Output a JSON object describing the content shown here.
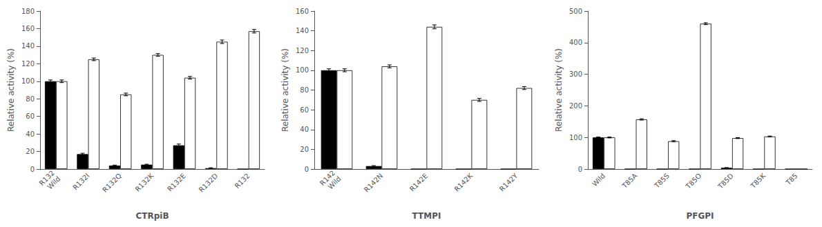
{
  "chart_data": [
    {
      "type": "bar",
      "xlabel": "CTRpiB",
      "ylabel": "Relative activity (%)",
      "categories": [
        "R132\nWild",
        "R132I",
        "R132Q",
        "R132K",
        "R132E",
        "R132D",
        "R132"
      ],
      "series": [
        {
          "color": "#000000",
          "values": [
            100,
            17,
            4,
            5,
            27,
            1,
            0
          ],
          "errors": [
            1.5,
            1.0,
            0.5,
            0.5,
            1.5,
            0.5,
            0.0
          ]
        },
        {
          "color": "#ffffff",
          "values": [
            100,
            125,
            85,
            130,
            104,
            145,
            157
          ],
          "errors": [
            1.5,
            1.5,
            1.5,
            1.5,
            1.5,
            2.0,
            2.0
          ]
        }
      ],
      "ylim": [
        0,
        180
      ],
      "yticks": [
        0,
        20,
        40,
        60,
        80,
        100,
        120,
        140,
        160,
        180
      ],
      "grid": false
    },
    {
      "type": "bar",
      "xlabel": "TTMPI",
      "ylabel": "Relative activity (%)",
      "categories": [
        "R142\nWild",
        "R142N",
        "R142E",
        "R142K",
        "R142Y"
      ],
      "series": [
        {
          "color": "#000000",
          "values": [
            100,
            3,
            0,
            0,
            0
          ],
          "errors": [
            1.5,
            0.5,
            0.0,
            0.0,
            0.0
          ]
        },
        {
          "color": "#ffffff",
          "values": [
            100,
            104,
            144,
            70,
            82
          ],
          "errors": [
            1.5,
            1.5,
            2.0,
            1.5,
            1.5
          ]
        }
      ],
      "ylim": [
        0,
        160
      ],
      "yticks": [
        0,
        20,
        40,
        60,
        80,
        100,
        120,
        140,
        160
      ],
      "grid": false
    },
    {
      "type": "bar",
      "xlabel": "PFGPI",
      "ylabel": "Relative activity (%)",
      "categories": [
        "Wild",
        "T85A",
        "T85S",
        "T85O",
        "T85D",
        "T85K",
        "T85"
      ],
      "series": [
        {
          "color": "#000000",
          "values": [
            100,
            0,
            0,
            0,
            4,
            0,
            0
          ],
          "errors": [
            1.5,
            0.0,
            0.0,
            0.0,
            0.5,
            0.0,
            0.0
          ]
        },
        {
          "color": "#ffffff",
          "values": [
            100,
            157,
            88,
            460,
            98,
            103,
            0
          ],
          "errors": [
            1.5,
            2.0,
            2.0,
            3.0,
            1.5,
            1.5,
            0.0
          ]
        }
      ],
      "ylim": [
        0,
        500
      ],
      "yticks": [
        0,
        100,
        200,
        300,
        400,
        500
      ],
      "grid": false
    }
  ]
}
